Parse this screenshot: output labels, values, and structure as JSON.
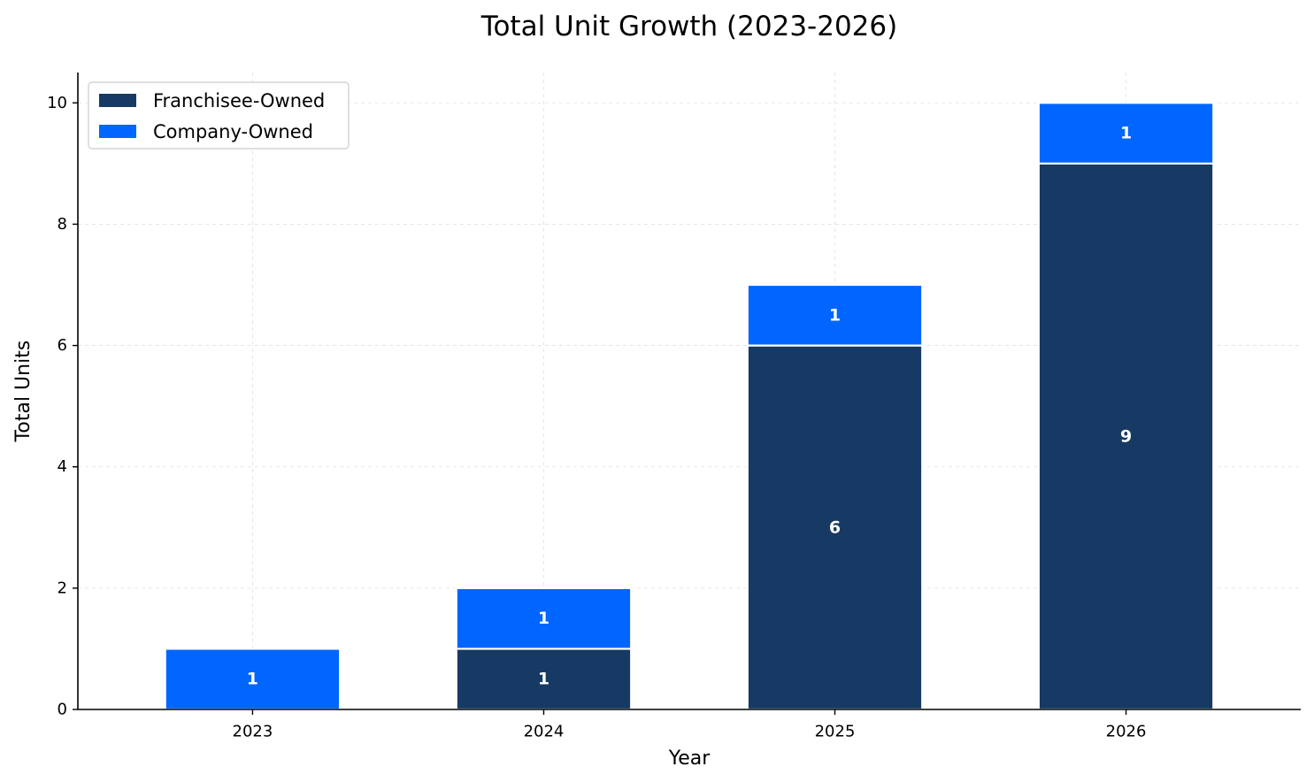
{
  "chart_data": {
    "type": "bar",
    "stacked": true,
    "title": "Total Unit Growth (2023-2026)",
    "xlabel": "Year",
    "ylabel": "Total Units",
    "categories": [
      "2023",
      "2024",
      "2025",
      "2026"
    ],
    "series": [
      {
        "name": "Franchisee-Owned",
        "color": "#163A63",
        "values": [
          0,
          1,
          6,
          9
        ],
        "labels": [
          "",
          "1",
          "6",
          "9"
        ]
      },
      {
        "name": "Company-Owned",
        "color": "#0066FF",
        "values": [
          1,
          1,
          1,
          1
        ],
        "labels": [
          "1",
          "1",
          "1",
          "1"
        ]
      }
    ],
    "ylim": [
      0,
      10.5
    ],
    "yticks": [
      0,
      2,
      4,
      6,
      8,
      10
    ],
    "ytick_labels": [
      "0",
      "2",
      "4",
      "6",
      "8",
      "10"
    ],
    "grid": true,
    "legend_position": "upper-left"
  }
}
